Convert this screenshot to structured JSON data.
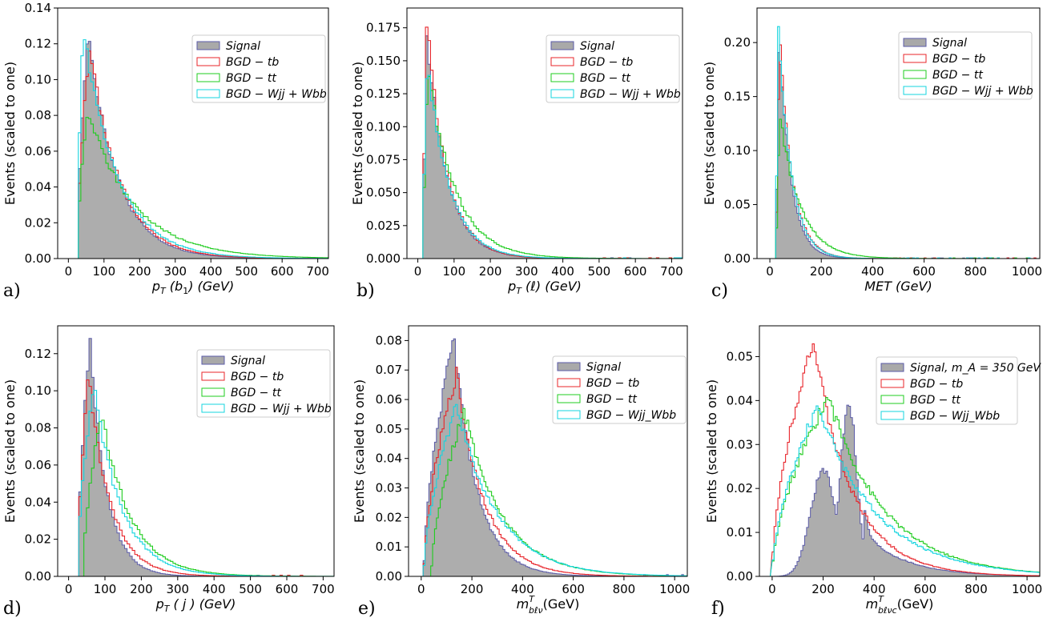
{
  "colors": {
    "signal_fill": "#a9a9a9",
    "signal_edge": "#5b5ba8",
    "tb": "#e8242a",
    "tt": "#1fcc1f",
    "wjj": "#14d4df",
    "frame": "#000000"
  },
  "chart_data": [
    {
      "panel": "a)",
      "type": "histogram",
      "ylabel": "Events (scaled to one)",
      "xlabel_var": "p",
      "xlabel_sub": "T",
      "xlabel_rest": " (b",
      "xlabel_sub2": "1",
      "xlabel_tail": ") (GeV)",
      "xlim": [
        -30,
        730
      ],
      "ylim": [
        0,
        0.14
      ],
      "xticks": [
        "0",
        "100",
        "200",
        "300",
        "400",
        "500",
        "600",
        "700"
      ],
      "xtick_vals": [
        0,
        100,
        200,
        300,
        400,
        500,
        600,
        700
      ],
      "yticks": [
        "0.00",
        "0.02",
        "0.04",
        "0.06",
        "0.08",
        "0.10",
        "0.12",
        "0.14"
      ],
      "ytick_vals": [
        0,
        0.02,
        0.04,
        0.06,
        0.08,
        0.1,
        0.12,
        0.14
      ],
      "legend": [
        "Signal",
        "BGD − tb",
        "BGD − tt",
        "BGD − Wjj + Wbb"
      ],
      "series": [
        {
          "name": "Signal",
          "peak": 55,
          "start": 25,
          "tail": 80,
          "height": 0.129,
          "style": "fill"
        },
        {
          "name": "BGD − tb",
          "peak": 60,
          "start": 25,
          "tail": 85,
          "height": 0.118,
          "style": "step"
        },
        {
          "name": "BGD − tt",
          "peak": 55,
          "start": 25,
          "tail": 130,
          "height": 0.082,
          "style": "step"
        },
        {
          "name": "BGD − Wjj + Wbb",
          "peak": 42,
          "start": 25,
          "tail": 95,
          "height": 0.127,
          "style": "step"
        }
      ]
    },
    {
      "panel": "b)",
      "type": "histogram",
      "ylabel": "Events (scaled to one)",
      "xlabel_var": "p",
      "xlabel_sub": "T",
      "xlabel_rest": " (ℓ) (GeV)",
      "xlabel_sub2": "",
      "xlabel_tail": "",
      "xlim": [
        -30,
        730
      ],
      "ylim": [
        0,
        0.19
      ],
      "xticks": [
        "0",
        "100",
        "200",
        "300",
        "400",
        "500",
        "600",
        "700"
      ],
      "xtick_vals": [
        0,
        100,
        200,
        300,
        400,
        500,
        600,
        700
      ],
      "yticks": [
        "0.000",
        "0.025",
        "0.050",
        "0.075",
        "0.100",
        "0.125",
        "0.150",
        "0.175"
      ],
      "ytick_vals": [
        0,
        0.025,
        0.05,
        0.075,
        0.1,
        0.125,
        0.15,
        0.175
      ],
      "legend": [
        "Signal",
        "BGD − tb",
        "BGD − tt",
        "BGD − Wjj + Wbb"
      ],
      "series": [
        {
          "name": "Signal",
          "peak": 25,
          "start": 15,
          "tail": 55,
          "height": 0.172,
          "style": "fill"
        },
        {
          "name": "BGD − tb",
          "peak": 25,
          "start": 15,
          "tail": 55,
          "height": 0.181,
          "style": "step"
        },
        {
          "name": "BGD − tt",
          "peak": 28,
          "start": 15,
          "tail": 75,
          "height": 0.143,
          "style": "step"
        },
        {
          "name": "BGD − Wjj + Wbb",
          "peak": 26,
          "start": 15,
          "tail": 60,
          "height": 0.153,
          "style": "step"
        }
      ]
    },
    {
      "panel": "c)",
      "type": "histogram",
      "ylabel": "Events (scaled to one)",
      "xlabel_var": "MET (GeV)",
      "xlabel_sub": "",
      "xlabel_rest": "",
      "xlabel_sub2": "",
      "xlabel_tail": "",
      "xlim": [
        -50,
        1050
      ],
      "ylim": [
        0,
        0.232
      ],
      "xticks": [
        "0",
        "200",
        "400",
        "600",
        "800",
        "1000"
      ],
      "xtick_vals": [
        0,
        200,
        400,
        600,
        800,
        1000
      ],
      "yticks": [
        "0.00",
        "0.05",
        "0.10",
        "0.15",
        "0.20"
      ],
      "ytick_vals": [
        0,
        0.05,
        0.1,
        0.15,
        0.2
      ],
      "legend": [
        "Signal",
        "BGD − tb",
        "BGD − tt",
        "BGD − Wjj + Wbb"
      ],
      "series": [
        {
          "name": "Signal",
          "peak": 35,
          "start": 25,
          "tail": 45,
          "height": 0.215,
          "style": "fill"
        },
        {
          "name": "BGD − tb",
          "peak": 40,
          "start": 25,
          "tail": 50,
          "height": 0.198,
          "style": "step"
        },
        {
          "name": "BGD − tt",
          "peak": 40,
          "start": 25,
          "tail": 80,
          "height": 0.13,
          "style": "step"
        },
        {
          "name": "BGD − Wjj + Wbb",
          "peak": 32,
          "start": 25,
          "tail": 50,
          "height": 0.222,
          "style": "step"
        }
      ]
    },
    {
      "panel": "d)",
      "type": "histogram",
      "ylabel": "Events (scaled to one)",
      "xlabel_var": "p",
      "xlabel_sub": "T",
      "xlabel_rest": " ( j )  (GeV)",
      "xlabel_sub2": "",
      "xlabel_tail": "",
      "xlim": [
        -30,
        730
      ],
      "ylim": [
        0,
        0.135
      ],
      "xticks": [
        "0",
        "100",
        "200",
        "300",
        "400",
        "500",
        "600",
        "700"
      ],
      "xtick_vals": [
        0,
        100,
        200,
        300,
        400,
        500,
        600,
        700
      ],
      "yticks": [
        "0.00",
        "0.02",
        "0.04",
        "0.06",
        "0.08",
        "0.10",
        "0.12"
      ],
      "ytick_vals": [
        0,
        0.02,
        0.04,
        0.06,
        0.08,
        0.1,
        0.12
      ],
      "legend": [
        "Signal",
        "BGD − tb",
        "BGD − tt",
        "BGD − Wjj + Wbb"
      ],
      "series": [
        {
          "name": "Signal",
          "peak": 60,
          "start": 25,
          "tail": 45,
          "height": 0.126,
          "style": "fill"
        },
        {
          "name": "BGD − tb",
          "peak": 55,
          "start": 25,
          "tail": 60,
          "height": 0.108,
          "style": "step"
        },
        {
          "name": "BGD − tt",
          "peak": 90,
          "start": 40,
          "tail": 80,
          "height": 0.088,
          "style": "step"
        },
        {
          "name": "BGD − Wjj + Wbb",
          "peak": 70,
          "start": 25,
          "tail": 75,
          "height": 0.103,
          "style": "step"
        }
      ]
    },
    {
      "panel": "e)",
      "type": "histogram",
      "ylabel": "Events (scaled to one)",
      "xlabel_var": "m",
      "xlabel_sub": "bℓν",
      "xlabel_rest": "(GeV)",
      "xlabel_sub2": "",
      "xlabel_tail": "",
      "xlabel_sup": "T",
      "xlim": [
        -50,
        1050
      ],
      "ylim": [
        0,
        0.085
      ],
      "xticks": [
        "0",
        "200",
        "400",
        "600",
        "800",
        "1000"
      ],
      "xtick_vals": [
        0,
        200,
        400,
        600,
        800,
        1000
      ],
      "yticks": [
        "0.00",
        "0.01",
        "0.02",
        "0.03",
        "0.04",
        "0.05",
        "0.06",
        "0.07",
        "0.08"
      ],
      "ytick_vals": [
        0,
        0.01,
        0.02,
        0.03,
        0.04,
        0.05,
        0.06,
        0.07,
        0.08
      ],
      "legend": [
        "Signal",
        "BGD − tb",
        "BGD − tt",
        "BGD − Wjj_Wbb"
      ],
      "series": [
        {
          "name": "Signal",
          "peak": 130,
          "start": 10,
          "tail": 90,
          "height": 0.081,
          "style": "fill"
        },
        {
          "name": "BGD − tb",
          "peak": 140,
          "start": 10,
          "tail": 110,
          "height": 0.069,
          "style": "step"
        },
        {
          "name": "BGD − tt",
          "peak": 170,
          "start": 40,
          "tail": 150,
          "height": 0.056,
          "style": "step"
        },
        {
          "name": "BGD − Wjj_Wbb",
          "peak": 140,
          "start": 10,
          "tail": 160,
          "height": 0.058,
          "style": "step"
        }
      ]
    },
    {
      "panel": "f)",
      "type": "histogram",
      "ylabel": "Events (scaled to one)",
      "xlabel_var": "m",
      "xlabel_sub": "bℓνc",
      "xlabel_rest": "(GeV)",
      "xlabel_sub2": "",
      "xlabel_tail": "",
      "xlabel_sup": "T",
      "xlim": [
        -50,
        1050
      ],
      "ylim": [
        0,
        0.057
      ],
      "xticks": [
        "0",
        "200",
        "400",
        "600",
        "800",
        "1000"
      ],
      "xtick_vals": [
        0,
        200,
        400,
        600,
        800,
        1000
      ],
      "yticks": [
        "0.00",
        "0.01",
        "0.02",
        "0.03",
        "0.04",
        "0.05"
      ],
      "ytick_vals": [
        0,
        0.01,
        0.02,
        0.03,
        0.04,
        0.05
      ],
      "legend": [
        "Signal, m_A = 350 GeV",
        "BGD − tb",
        "BGD − tt",
        "BGD − Wjj_Wbb"
      ],
      "series": [
        {
          "name": "Signal, m_A = 350 GeV",
          "peak": 300,
          "start": 0,
          "tail": 200,
          "height": 0.04,
          "style": "fill",
          "bimodal": true
        },
        {
          "name": "BGD − tb",
          "peak": 160,
          "start": 0,
          "tail": 150,
          "height": 0.054,
          "style": "step"
        },
        {
          "name": "BGD − tt",
          "peak": 220,
          "start": 0,
          "tail": 220,
          "height": 0.041,
          "style": "step"
        },
        {
          "name": "BGD − Wjj_Wbb",
          "peak": 180,
          "start": 0,
          "tail": 230,
          "height": 0.039,
          "style": "step"
        }
      ]
    }
  ]
}
